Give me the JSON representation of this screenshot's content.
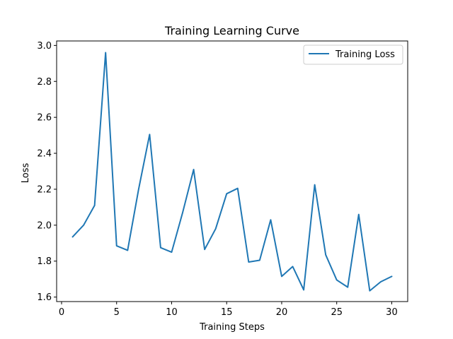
{
  "chart_data": {
    "type": "line",
    "title": "Training Learning Curve",
    "xlabel": "Training Steps",
    "ylabel": "Loss",
    "xlim": [
      -0.45,
      31.45
    ],
    "ylim": [
      1.575,
      3.025
    ],
    "xticks": [
      0,
      5,
      10,
      15,
      20,
      25,
      30
    ],
    "yticks": [
      1.6,
      1.8,
      2.0,
      2.2,
      2.4,
      2.6,
      2.8,
      3.0
    ],
    "xtick_labels": [
      "0",
      "5",
      "10",
      "15",
      "20",
      "25",
      "30"
    ],
    "ytick_labels": [
      "1.6",
      "1.8",
      "2.0",
      "2.2",
      "2.4",
      "2.6",
      "2.8",
      "3.0"
    ],
    "grid": false,
    "legend_position": "top-right",
    "series": [
      {
        "name": "Training Loss",
        "color": "#1f77b4",
        "x": [
          1,
          2,
          3,
          4,
          5,
          6,
          7,
          8,
          9,
          10,
          11,
          12,
          13,
          14,
          15,
          16,
          17,
          18,
          19,
          20,
          21,
          22,
          23,
          24,
          25,
          26,
          27,
          28,
          29,
          30
        ],
        "y": [
          1.935,
          2.0,
          2.11,
          2.96,
          1.885,
          1.86,
          2.2,
          2.505,
          1.875,
          1.85,
          2.07,
          2.31,
          1.865,
          1.98,
          2.175,
          2.205,
          1.795,
          1.805,
          2.03,
          1.715,
          1.77,
          1.64,
          2.225,
          1.835,
          1.695,
          1.655,
          2.06,
          1.635,
          1.685,
          1.715
        ]
      }
    ]
  }
}
